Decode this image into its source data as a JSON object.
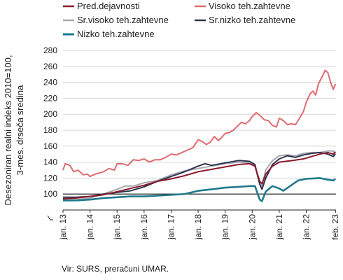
{
  "chart_data": {
    "type": "line",
    "ylabel_lines": [
      "Desezoniran realni indeks 2010=100,",
      "3-mes. drseča sredina"
    ],
    "source": "Vir: SURS, preračuni UMAR.",
    "ylim": [
      80,
      280
    ],
    "yticks": [
      100,
      120,
      140,
      160,
      180,
      200,
      220,
      240,
      260,
      280
    ],
    "xticks": [
      "jan. 13",
      "jan. 14",
      "jan. 15",
      "jan. 16",
      "jan. 17",
      "jan. 18",
      "jan. 19",
      "jan. 20",
      "jan. 21",
      "jan. 22",
      "feb. 23"
    ],
    "grid": "horizontal",
    "legend_position": "top",
    "reference_line": 100,
    "series": [
      {
        "name": "Pred.dejavnosti",
        "color": "#8B1A2B",
        "points": [
          [
            2013.0,
            94
          ],
          [
            2013.5,
            95
          ],
          [
            2014.0,
            97
          ],
          [
            2014.5,
            99
          ],
          [
            2015.0,
            103
          ],
          [
            2015.5,
            107
          ],
          [
            2016.0,
            111
          ],
          [
            2016.5,
            116
          ],
          [
            2017.0,
            119
          ],
          [
            2017.5,
            123
          ],
          [
            2018.0,
            128
          ],
          [
            2018.5,
            131
          ],
          [
            2019.0,
            134
          ],
          [
            2019.5,
            137
          ],
          [
            2019.9,
            138
          ],
          [
            2020.1,
            135
          ],
          [
            2020.28,
            116
          ],
          [
            2020.36,
            113
          ],
          [
            2020.5,
            125
          ],
          [
            2020.75,
            135
          ],
          [
            2021.0,
            140
          ],
          [
            2021.5,
            142
          ],
          [
            2021.9,
            144
          ],
          [
            2022.2,
            147
          ],
          [
            2022.5,
            150
          ],
          [
            2022.8,
            152
          ],
          [
            2023.0,
            150
          ],
          [
            2023.08,
            153
          ]
        ]
      },
      {
        "name": "Visoko teh.zahtevne",
        "color": "#E06A6E",
        "points": [
          [
            2013.0,
            130
          ],
          [
            2013.08,
            138
          ],
          [
            2013.25,
            136
          ],
          [
            2013.4,
            128
          ],
          [
            2013.55,
            130
          ],
          [
            2013.75,
            124
          ],
          [
            2013.9,
            125
          ],
          [
            2014.0,
            122
          ],
          [
            2014.2,
            125
          ],
          [
            2014.4,
            127
          ],
          [
            2014.5,
            128
          ],
          [
            2014.7,
            132
          ],
          [
            2014.9,
            130
          ],
          [
            2015.0,
            138
          ],
          [
            2015.2,
            138
          ],
          [
            2015.4,
            136
          ],
          [
            2015.6,
            143
          ],
          [
            2015.8,
            142
          ],
          [
            2016.0,
            144
          ],
          [
            2016.2,
            140
          ],
          [
            2016.4,
            143
          ],
          [
            2016.6,
            143
          ],
          [
            2016.8,
            146
          ],
          [
            2017.0,
            150
          ],
          [
            2017.2,
            149
          ],
          [
            2017.4,
            152
          ],
          [
            2017.6,
            155
          ],
          [
            2017.8,
            158
          ],
          [
            2018.0,
            168
          ],
          [
            2018.15,
            166
          ],
          [
            2018.3,
            162
          ],
          [
            2018.45,
            165
          ],
          [
            2018.6,
            172
          ],
          [
            2018.75,
            167
          ],
          [
            2018.9,
            172
          ],
          [
            2019.0,
            176
          ],
          [
            2019.15,
            177
          ],
          [
            2019.3,
            180
          ],
          [
            2019.45,
            185
          ],
          [
            2019.6,
            190
          ],
          [
            2019.75,
            188
          ],
          [
            2019.9,
            192
          ],
          [
            2020.0,
            197
          ],
          [
            2020.15,
            202
          ],
          [
            2020.3,
            198
          ],
          [
            2020.45,
            193
          ],
          [
            2020.6,
            192
          ],
          [
            2020.75,
            186
          ],
          [
            2020.9,
            184
          ],
          [
            2021.0,
            195
          ],
          [
            2021.15,
            192
          ],
          [
            2021.3,
            187
          ],
          [
            2021.45,
            188
          ],
          [
            2021.6,
            187
          ],
          [
            2021.75,
            195
          ],
          [
            2021.9,
            204
          ],
          [
            2022.0,
            215
          ],
          [
            2022.15,
            226
          ],
          [
            2022.25,
            229
          ],
          [
            2022.35,
            224
          ],
          [
            2022.45,
            238
          ],
          [
            2022.6,
            248
          ],
          [
            2022.7,
            255
          ],
          [
            2022.8,
            252
          ],
          [
            2022.9,
            240
          ],
          [
            2023.0,
            231
          ],
          [
            2023.08,
            238
          ]
        ]
      },
      {
        "name": "Sr.visoko teh.zahtevne",
        "color": "#A8A8B0",
        "points": [
          [
            2013.0,
            92
          ],
          [
            2013.5,
            93
          ],
          [
            2014.0,
            95
          ],
          [
            2014.5,
            100
          ],
          [
            2015.0,
            106
          ],
          [
            2015.3,
            110
          ],
          [
            2015.6,
            110
          ],
          [
            2016.0,
            114
          ],
          [
            2016.5,
            117
          ],
          [
            2017.0,
            124
          ],
          [
            2017.5,
            129
          ],
          [
            2018.0,
            132
          ],
          [
            2018.5,
            135
          ],
          [
            2019.0,
            138
          ],
          [
            2019.5,
            140
          ],
          [
            2019.9,
            139
          ],
          [
            2020.1,
            135
          ],
          [
            2020.28,
            113
          ],
          [
            2020.36,
            110
          ],
          [
            2020.5,
            130
          ],
          [
            2020.75,
            142
          ],
          [
            2021.0,
            148
          ],
          [
            2021.3,
            149
          ],
          [
            2021.6,
            148
          ],
          [
            2021.9,
            151
          ],
          [
            2022.2,
            152
          ],
          [
            2022.5,
            152
          ],
          [
            2022.8,
            154
          ],
          [
            2023.0,
            154
          ],
          [
            2023.08,
            150
          ]
        ]
      },
      {
        "name": "Sr.nizko teh.zahtevne",
        "color": "#2C3550",
        "points": [
          [
            2013.0,
            96
          ],
          [
            2013.5,
            96
          ],
          [
            2014.0,
            97
          ],
          [
            2014.5,
            100
          ],
          [
            2015.0,
            102
          ],
          [
            2015.5,
            104
          ],
          [
            2016.0,
            109
          ],
          [
            2016.5,
            116
          ],
          [
            2017.0,
            122
          ],
          [
            2017.5,
            128
          ],
          [
            2018.0,
            135
          ],
          [
            2018.25,
            138
          ],
          [
            2018.5,
            136
          ],
          [
            2019.0,
            139
          ],
          [
            2019.5,
            142
          ],
          [
            2019.9,
            141
          ],
          [
            2020.1,
            137
          ],
          [
            2020.28,
            112
          ],
          [
            2020.36,
            106
          ],
          [
            2020.5,
            120
          ],
          [
            2020.75,
            137
          ],
          [
            2021.0,
            144
          ],
          [
            2021.3,
            148
          ],
          [
            2021.6,
            146
          ],
          [
            2021.9,
            149
          ],
          [
            2022.2,
            151
          ],
          [
            2022.5,
            152
          ],
          [
            2022.8,
            150
          ],
          [
            2023.0,
            147
          ],
          [
            2023.08,
            150
          ]
        ]
      },
      {
        "name": "Nizko teh.zahtevne",
        "color": "#1F7A8C",
        "points": [
          [
            2013.0,
            92
          ],
          [
            2013.5,
            92
          ],
          [
            2014.0,
            93
          ],
          [
            2014.5,
            95
          ],
          [
            2015.0,
            96
          ],
          [
            2015.5,
            97
          ],
          [
            2016.0,
            97
          ],
          [
            2016.5,
            98
          ],
          [
            2017.0,
            99
          ],
          [
            2017.5,
            100
          ],
          [
            2018.0,
            104
          ],
          [
            2018.5,
            106
          ],
          [
            2019.0,
            108
          ],
          [
            2019.5,
            109
          ],
          [
            2019.9,
            110
          ],
          [
            2020.1,
            110
          ],
          [
            2020.28,
            93
          ],
          [
            2020.36,
            91
          ],
          [
            2020.5,
            103
          ],
          [
            2020.75,
            110
          ],
          [
            2021.0,
            107
          ],
          [
            2021.15,
            104
          ],
          [
            2021.4,
            110
          ],
          [
            2021.7,
            117
          ],
          [
            2022.0,
            119
          ],
          [
            2022.5,
            120
          ],
          [
            2022.8,
            118
          ],
          [
            2023.0,
            117
          ],
          [
            2023.08,
            119
          ]
        ]
      }
    ]
  }
}
